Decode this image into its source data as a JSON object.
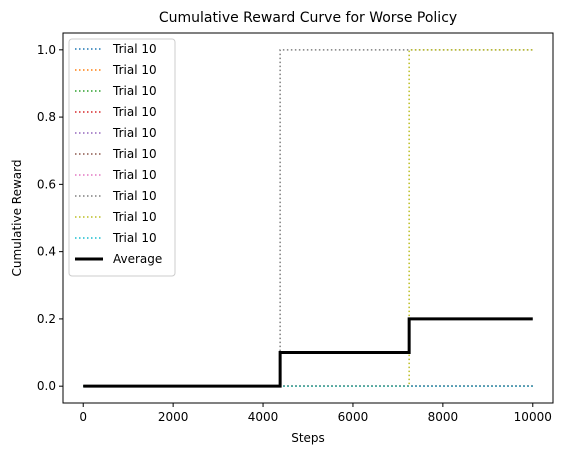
{
  "chart_data": {
    "type": "line",
    "title": "Cumulative Reward Curve for Worse Policy",
    "xlabel": "Steps",
    "ylabel": "Cumulative Reward",
    "xlim": [
      -450,
      10450
    ],
    "ylim": [
      -0.05,
      1.05
    ],
    "xticks": [
      0,
      2000,
      4000,
      6000,
      8000,
      10000
    ],
    "yticks": [
      0.0,
      0.2,
      0.4,
      0.6,
      0.8,
      1.0
    ],
    "xtick_labels": [
      "0",
      "2000",
      "4000",
      "6000",
      "8000",
      "10000"
    ],
    "ytick_labels": [
      "0.0",
      "0.2",
      "0.4",
      "0.6",
      "0.8",
      "1.0"
    ],
    "grid": false,
    "legend_position": "upper left",
    "series": [
      {
        "name": "Trial 10",
        "color": "#1f77b4",
        "style": "dotted",
        "x": [
          0,
          10000
        ],
        "y": [
          0,
          0
        ]
      },
      {
        "name": "Trial 10",
        "color": "#ff7f0e",
        "style": "dotted",
        "x": [
          0,
          10000
        ],
        "y": [
          0,
          0
        ]
      },
      {
        "name": "Trial 10",
        "color": "#2ca02c",
        "style": "dotted",
        "x": [
          0,
          10000
        ],
        "y": [
          0,
          0
        ]
      },
      {
        "name": "Trial 10",
        "color": "#d62728",
        "style": "dotted",
        "x": [
          0,
          10000
        ],
        "y": [
          0,
          0
        ]
      },
      {
        "name": "Trial 10",
        "color": "#9467bd",
        "style": "dotted",
        "x": [
          0,
          10000
        ],
        "y": [
          0,
          0
        ]
      },
      {
        "name": "Trial 10",
        "color": "#8c564b",
        "style": "dotted",
        "x": [
          0,
          10000
        ],
        "y": [
          0,
          0
        ]
      },
      {
        "name": "Trial 10",
        "color": "#e377c2",
        "style": "dotted",
        "x": [
          0,
          10000
        ],
        "y": [
          0,
          0
        ]
      },
      {
        "name": "Trial 10",
        "color": "#7f7f7f",
        "style": "dotted",
        "x": [
          0,
          4380,
          4380,
          10000
        ],
        "y": [
          0,
          0,
          1,
          1
        ]
      },
      {
        "name": "Trial 10",
        "color": "#bcbd22",
        "style": "dotted",
        "x": [
          0,
          7250,
          7250,
          10000
        ],
        "y": [
          0,
          0,
          1,
          1
        ]
      },
      {
        "name": "Trial 10",
        "color": "#17becf",
        "style": "dotted",
        "x": [
          0,
          10000
        ],
        "y": [
          0,
          0
        ]
      },
      {
        "name": "Average",
        "color": "#000000",
        "style": "solid",
        "x": [
          0,
          4380,
          4380,
          7250,
          7250,
          10000
        ],
        "y": [
          0,
          0,
          0.1,
          0.1,
          0.2,
          0.2
        ]
      }
    ]
  }
}
